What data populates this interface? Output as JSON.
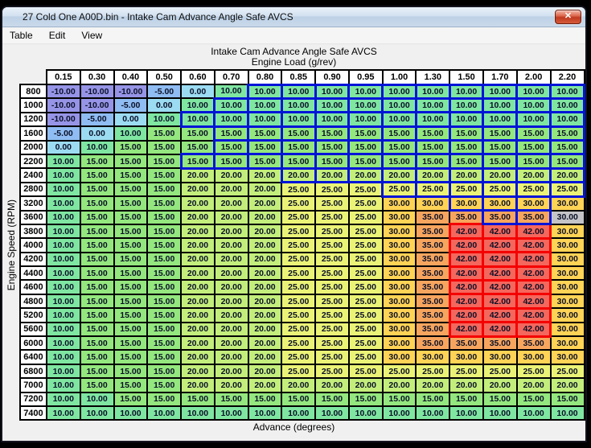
{
  "window": {
    "title": "27  Cold One A00D.bin - Intake Cam Advance Angle Safe AVCS"
  },
  "icons": {
    "close_glyph": "✕"
  },
  "menu": {
    "items": [
      "Table",
      "Edit",
      "View"
    ]
  },
  "table": {
    "title": "Intake Cam Advance Angle Safe AVCS",
    "x_axis_label": "Engine Load (g/rev)",
    "y_axis_label": "Engine Speed (RPM)",
    "unit_label": "Advance (degrees)",
    "columns": [
      "0.15",
      "0.30",
      "0.40",
      "0.50",
      "0.60",
      "0.70",
      "0.80",
      "0.85",
      "0.90",
      "0.95",
      "1.00",
      "1.30",
      "1.50",
      "1.70",
      "2.00",
      "2.20"
    ],
    "rows": [
      {
        "rpm": "800",
        "values": [
          "-10.00",
          "-10.00",
          "-10.00",
          "-5.00",
          "0.00",
          "10.00",
          "10.00",
          "10.00",
          "10.00",
          "10.00",
          "10.00",
          "10.00",
          "10.00",
          "10.00",
          "10.00",
          "10.00"
        ]
      },
      {
        "rpm": "1000",
        "values": [
          "-10.00",
          "-10.00",
          "-5.00",
          "0.00",
          "10.00",
          "10.00",
          "10.00",
          "10.00",
          "10.00",
          "10.00",
          "10.00",
          "10.00",
          "10.00",
          "10.00",
          "10.00",
          "10.00"
        ]
      },
      {
        "rpm": "1200",
        "values": [
          "-10.00",
          "-5.00",
          "0.00",
          "10.00",
          "10.00",
          "10.00",
          "10.00",
          "10.00",
          "10.00",
          "10.00",
          "10.00",
          "10.00",
          "10.00",
          "10.00",
          "10.00",
          "10.00"
        ]
      },
      {
        "rpm": "1600",
        "values": [
          "-5.00",
          "0.00",
          "10.00",
          "15.00",
          "15.00",
          "15.00",
          "15.00",
          "15.00",
          "15.00",
          "15.00",
          "15.00",
          "15.00",
          "15.00",
          "15.00",
          "15.00",
          "15.00"
        ]
      },
      {
        "rpm": "2000",
        "values": [
          "0.00",
          "10.00",
          "15.00",
          "15.00",
          "15.00",
          "15.00",
          "15.00",
          "15.00",
          "15.00",
          "15.00",
          "15.00",
          "15.00",
          "15.00",
          "15.00",
          "15.00",
          "15.00"
        ]
      },
      {
        "rpm": "2200",
        "values": [
          "10.00",
          "15.00",
          "15.00",
          "15.00",
          "15.00",
          "15.00",
          "15.00",
          "15.00",
          "15.00",
          "15.00",
          "15.00",
          "15.00",
          "15.00",
          "15.00",
          "15.00",
          "15.00"
        ]
      },
      {
        "rpm": "2400",
        "values": [
          "10.00",
          "15.00",
          "15.00",
          "15.00",
          "20.00",
          "20.00",
          "20.00",
          "20.00",
          "20.00",
          "20.00",
          "20.00",
          "20.00",
          "20.00",
          "20.00",
          "20.00",
          "20.00"
        ]
      },
      {
        "rpm": "2800",
        "values": [
          "10.00",
          "15.00",
          "15.00",
          "15.00",
          "20.00",
          "20.00",
          "20.00",
          "25.00",
          "25.00",
          "25.00",
          "25.00",
          "25.00",
          "25.00",
          "25.00",
          "25.00",
          "25.00"
        ]
      },
      {
        "rpm": "3200",
        "values": [
          "10.00",
          "15.00",
          "15.00",
          "15.00",
          "20.00",
          "20.00",
          "20.00",
          "25.00",
          "25.00",
          "25.00",
          "30.00",
          "30.00",
          "30.00",
          "30.00",
          "30.00",
          "30.00"
        ]
      },
      {
        "rpm": "3600",
        "values": [
          "10.00",
          "15.00",
          "15.00",
          "15.00",
          "20.00",
          "20.00",
          "20.00",
          "25.00",
          "25.00",
          "25.00",
          "30.00",
          "35.00",
          "35.00",
          "35.00",
          "35.00",
          "30.00"
        ]
      },
      {
        "rpm": "3800",
        "values": [
          "10.00",
          "15.00",
          "15.00",
          "15.00",
          "20.00",
          "20.00",
          "20.00",
          "25.00",
          "25.00",
          "25.00",
          "30.00",
          "35.00",
          "42.00",
          "42.00",
          "42.00",
          "30.00"
        ]
      },
      {
        "rpm": "4000",
        "values": [
          "10.00",
          "15.00",
          "15.00",
          "15.00",
          "20.00",
          "20.00",
          "20.00",
          "25.00",
          "25.00",
          "25.00",
          "30.00",
          "35.00",
          "42.00",
          "42.00",
          "42.00",
          "30.00"
        ]
      },
      {
        "rpm": "4200",
        "values": [
          "10.00",
          "15.00",
          "15.00",
          "15.00",
          "20.00",
          "20.00",
          "20.00",
          "25.00",
          "25.00",
          "25.00",
          "30.00",
          "35.00",
          "42.00",
          "42.00",
          "42.00",
          "30.00"
        ]
      },
      {
        "rpm": "4400",
        "values": [
          "10.00",
          "15.00",
          "15.00",
          "15.00",
          "20.00",
          "20.00",
          "20.00",
          "25.00",
          "25.00",
          "25.00",
          "30.00",
          "35.00",
          "42.00",
          "42.00",
          "42.00",
          "30.00"
        ]
      },
      {
        "rpm": "4600",
        "values": [
          "10.00",
          "15.00",
          "15.00",
          "15.00",
          "20.00",
          "20.00",
          "20.00",
          "25.00",
          "25.00",
          "25.00",
          "30.00",
          "35.00",
          "42.00",
          "42.00",
          "42.00",
          "30.00"
        ]
      },
      {
        "rpm": "4800",
        "values": [
          "10.00",
          "15.00",
          "15.00",
          "15.00",
          "20.00",
          "20.00",
          "20.00",
          "25.00",
          "25.00",
          "25.00",
          "30.00",
          "35.00",
          "42.00",
          "42.00",
          "42.00",
          "30.00"
        ]
      },
      {
        "rpm": "5200",
        "values": [
          "10.00",
          "15.00",
          "15.00",
          "15.00",
          "20.00",
          "20.00",
          "20.00",
          "25.00",
          "25.00",
          "25.00",
          "30.00",
          "35.00",
          "42.00",
          "42.00",
          "42.00",
          "30.00"
        ]
      },
      {
        "rpm": "5600",
        "values": [
          "10.00",
          "15.00",
          "15.00",
          "15.00",
          "20.00",
          "20.00",
          "20.00",
          "25.00",
          "25.00",
          "25.00",
          "30.00",
          "35.00",
          "42.00",
          "42.00",
          "42.00",
          "30.00"
        ]
      },
      {
        "rpm": "6000",
        "values": [
          "10.00",
          "15.00",
          "15.00",
          "15.00",
          "20.00",
          "20.00",
          "20.00",
          "25.00",
          "25.00",
          "25.00",
          "30.00",
          "35.00",
          "35.00",
          "35.00",
          "35.00",
          "30.00"
        ]
      },
      {
        "rpm": "6400",
        "values": [
          "10.00",
          "15.00",
          "15.00",
          "15.00",
          "20.00",
          "20.00",
          "20.00",
          "25.00",
          "25.00",
          "25.00",
          "30.00",
          "30.00",
          "30.00",
          "30.00",
          "30.00",
          "30.00"
        ]
      },
      {
        "rpm": "6800",
        "values": [
          "10.00",
          "15.00",
          "15.00",
          "15.00",
          "20.00",
          "20.00",
          "20.00",
          "25.00",
          "25.00",
          "25.00",
          "25.00",
          "25.00",
          "25.00",
          "25.00",
          "25.00",
          "25.00"
        ]
      },
      {
        "rpm": "7000",
        "values": [
          "10.00",
          "15.00",
          "15.00",
          "15.00",
          "20.00",
          "20.00",
          "20.00",
          "20.00",
          "20.00",
          "20.00",
          "20.00",
          "20.00",
          "20.00",
          "20.00",
          "20.00",
          "20.00"
        ]
      },
      {
        "rpm": "7200",
        "values": [
          "10.00",
          "10.00",
          "15.00",
          "15.00",
          "15.00",
          "15.00",
          "15.00",
          "15.00",
          "15.00",
          "15.00",
          "15.00",
          "15.00",
          "15.00",
          "15.00",
          "15.00",
          "15.00"
        ]
      },
      {
        "rpm": "7400",
        "values": [
          "10.00",
          "10.00",
          "10.00",
          "10.00",
          "10.00",
          "10.00",
          "10.00",
          "10.00",
          "10.00",
          "10.00",
          "10.00",
          "10.00",
          "10.00",
          "10.00",
          "10.00",
          "10.00"
        ]
      }
    ],
    "value_colors": {
      "-10.00": "#9694E6",
      "-5.00": "#8FBCF2",
      "0.00": "#9CDCF2",
      "10.00": "#7FE6A1",
      "15.00": "#94E77E",
      "20.00": "#C3EE7C",
      "25.00": "#EBF377",
      "30.00": "#FFD355",
      "35.00": "#F7A55E",
      "42.00": "#F4675D"
    },
    "selection": {
      "border_color": "#0014D8",
      "col_range_by_rpm": {
        "800": [
          6,
          15
        ],
        "1000": [
          5,
          15
        ],
        "1200": [
          4,
          15
        ],
        "1600": [
          5,
          15
        ],
        "2000": [
          5,
          15
        ],
        "2200": [
          4,
          15
        ],
        "2400": [
          7,
          15
        ],
        "2800": [
          10,
          15
        ],
        "3200": [
          12,
          14
        ],
        "3600": [
          13,
          14
        ]
      }
    },
    "warning_highlight": {
      "border_color": "#F50000",
      "rows": [
        "3800",
        "4000",
        "4200",
        "4400",
        "4600",
        "4800",
        "5200",
        "5600"
      ],
      "col_range": [
        12,
        14
      ]
    },
    "cursor_cell": {
      "rpm": "3600",
      "col": 15,
      "background": "#C4C4C8"
    }
  }
}
